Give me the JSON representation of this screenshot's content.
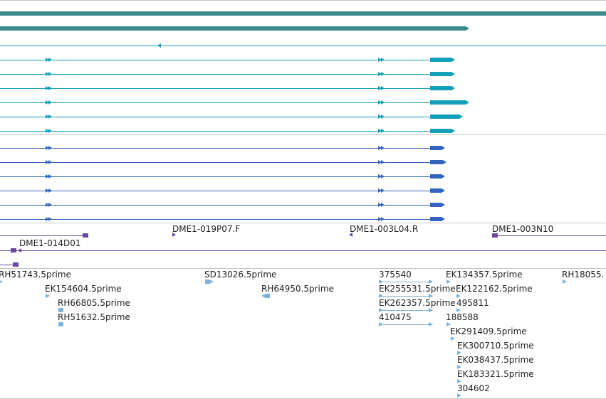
{
  "colors": {
    "teal_dark": "#3a8a8c",
    "teal_bright": "#12a0b8",
    "blue": "#3365c0",
    "purple": "#6a4aa0",
    "est": "#7fb2d8",
    "separator": "#c8c8c8"
  },
  "bac_labels": {
    "l1": "DME1-019P07.F",
    "l2": "DME1-003L04.R",
    "l3": "DME1-003N10",
    "l4": "DME1-014D01"
  },
  "est_labels": {
    "e01": "RH51743.5prime",
    "e02": "SD13026.5prime",
    "e03": "375540",
    "e04": "EK134357.5prime",
    "e05": "RH18055.",
    "e06": "EK154604.5prime",
    "e07": "RH64950.5prime",
    "e08": "EK255531.5prime",
    "e09": "EK122162.5prime",
    "e10": "RH66805.5prime",
    "e11": "EK262357.5prime",
    "e12": "495811",
    "e13": "RH51632.5prime",
    "e14": "410475",
    "e15": "188588",
    "e16": "EK291409.5prime",
    "e17": "EK300710.5prime",
    "e18": "EK038437.5prime",
    "e19": "EK183321.5prime",
    "e20": "304602"
  }
}
